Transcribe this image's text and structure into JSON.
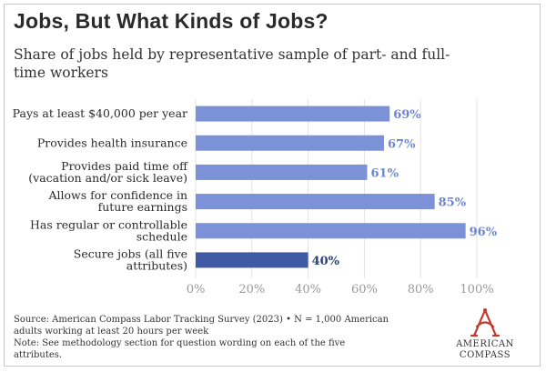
{
  "header": {
    "title": "Jobs, But What Kinds of Jobs?",
    "subtitle": "Share of jobs held by representative sample of part- and full-time workers"
  },
  "chart_data": {
    "type": "bar",
    "orientation": "horizontal",
    "categories": [
      [
        "Pays at least $40,000 per year"
      ],
      [
        "Provides health insurance"
      ],
      [
        "Provides paid time off",
        "(vacation and/or sick leave)"
      ],
      [
        "Allows for confidence in",
        "future earnings"
      ],
      [
        "Has regular or controllable",
        "schedule"
      ],
      [
        "Secure jobs (all five",
        "attributes)"
      ]
    ],
    "values": [
      69,
      67,
      61,
      85,
      96,
      40
    ],
    "value_labels": [
      "69%",
      "67%",
      "61%",
      "85%",
      "96%",
      "40%"
    ],
    "ticks": [
      "0%",
      "20%",
      "40%",
      "60%",
      "80%",
      "100%"
    ],
    "xlim": [
      0,
      100
    ],
    "grid": true,
    "colors": {
      "bar": "#7b92d8",
      "bar_highlight": "#3f5aa3",
      "value_text": "#6f87d3",
      "value_text_highlight": "#2d3f7a"
    },
    "highlight_index": 5
  },
  "footer": {
    "source": "Source: American Compass Labor Tracking Survey (2023) • N = 1,000 American adults working at least 20 hours per week",
    "note": "Note: See methodology section for question wording on each of the five attributes."
  },
  "logo": {
    "line1": "AMERICAN",
    "line2": "COMPASS",
    "icon": "compass-a-icon",
    "color": "#c0392b"
  }
}
